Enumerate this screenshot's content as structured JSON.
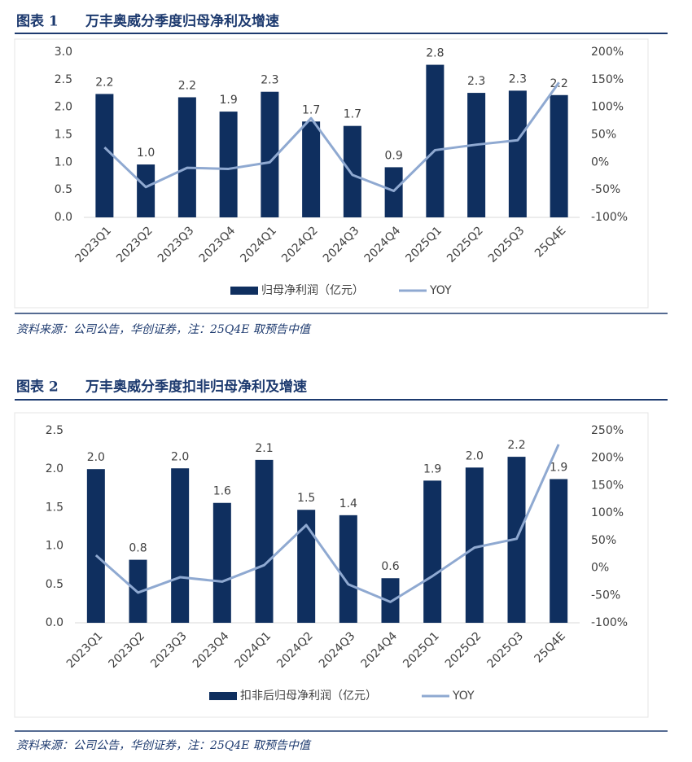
{
  "chart_data": [
    {
      "type": "bar-line",
      "label": "图表 1",
      "title": "万丰奥威分季度归母净利及增速",
      "categories": [
        "2023Q1",
        "2023Q2",
        "2023Q3",
        "2023Q4",
        "2024Q1",
        "2024Q2",
        "2024Q3",
        "2024Q4",
        "2025Q1",
        "2025Q2",
        "2025Q3",
        "25Q4E"
      ],
      "series": [
        {
          "name": "归母净利润（亿元）",
          "type": "bar",
          "color": "#0f2f5f",
          "values": [
            2.24,
            0.96,
            2.18,
            1.92,
            2.28,
            1.74,
            1.66,
            0.91,
            2.77,
            2.26,
            2.3,
            2.22
          ],
          "value_labels": [
            "2.2",
            "1.0",
            "2.2",
            "1.9",
            "2.3",
            "1.7",
            "1.7",
            "0.9",
            "2.8",
            "2.3",
            "2.3",
            "2.2"
          ]
        },
        {
          "name": "YOY",
          "type": "line",
          "axis": "y2",
          "color": "#8fa9d1",
          "values": [
            27,
            -45,
            -10,
            -12,
            0,
            80,
            -23,
            -52,
            22,
            32,
            40,
            145
          ]
        }
      ],
      "ylim": [
        0,
        3
      ],
      "yticks": [
        {
          "value": 0,
          "label": "0.0"
        },
        0.5,
        {
          "value": 1,
          "label": "1.0"
        },
        1.5,
        {
          "value": 2,
          "label": "2.0"
        },
        2.5,
        {
          "value": 3,
          "label": "3.0"
        }
      ],
      "y2lim": [
        -100,
        200
      ],
      "y2ticks": [
        {
          "value": -100,
          "label": "-100%"
        },
        {
          "value": -50,
          "label": "-50%"
        },
        {
          "value": 0,
          "label": "0%"
        },
        {
          "value": 50,
          "label": "50%"
        },
        {
          "value": 100,
          "label": "100%"
        },
        {
          "value": 150,
          "label": "150%"
        },
        {
          "value": 200,
          "label": "200%"
        }
      ],
      "source": "资料来源：公司公告，华创证券，注：25Q4E 取预告中值"
    },
    {
      "type": "bar-line",
      "label": "图表 2",
      "title": "万丰奥威分季度扣非归母净利及增速",
      "categories": [
        "2023Q1",
        "2023Q2",
        "2023Q3",
        "2023Q4",
        "2024Q1",
        "2024Q2",
        "2024Q3",
        "2024Q4",
        "2025Q1",
        "2025Q2",
        "2025Q3",
        "25Q4E"
      ],
      "series": [
        {
          "name": "扣非后归母净利润（亿元）",
          "type": "bar",
          "color": "#0f2f5f",
          "values": [
            2.0,
            0.82,
            2.01,
            1.56,
            2.12,
            1.47,
            1.4,
            0.58,
            1.85,
            2.02,
            2.16,
            1.87
          ],
          "value_labels": [
            "2.0",
            "0.8",
            "2.0",
            "1.6",
            "2.1",
            "1.5",
            "1.4",
            "0.6",
            "1.9",
            "2.0",
            "2.2",
            "1.9"
          ]
        },
        {
          "name": "YOY",
          "type": "line",
          "axis": "y2",
          "color": "#8fa9d1",
          "values": [
            23,
            -45,
            -17,
            -25,
            5,
            78,
            -30,
            -62,
            -15,
            37,
            53,
            225
          ]
        }
      ],
      "ylim": [
        0,
        2.5
      ],
      "yticks": [
        {
          "value": 0,
          "label": "0.0"
        },
        0.5,
        {
          "value": 1,
          "label": "1.0"
        },
        1.5,
        {
          "value": 2,
          "label": "2.0"
        },
        2.5
      ],
      "y2lim": [
        -100,
        250
      ],
      "y2ticks": [
        {
          "value": -100,
          "label": "-100%"
        },
        {
          "value": -50,
          "label": "-50%"
        },
        {
          "value": 0,
          "label": "0%"
        },
        {
          "value": 50,
          "label": "50%"
        },
        {
          "value": 100,
          "label": "100%"
        },
        {
          "value": 150,
          "label": "150%"
        },
        {
          "value": 200,
          "label": "200%"
        },
        {
          "value": 250,
          "label": "250%"
        }
      ],
      "source": "资料来源：公司公告，华创证券，注：25Q4E 取预告中值"
    }
  ]
}
